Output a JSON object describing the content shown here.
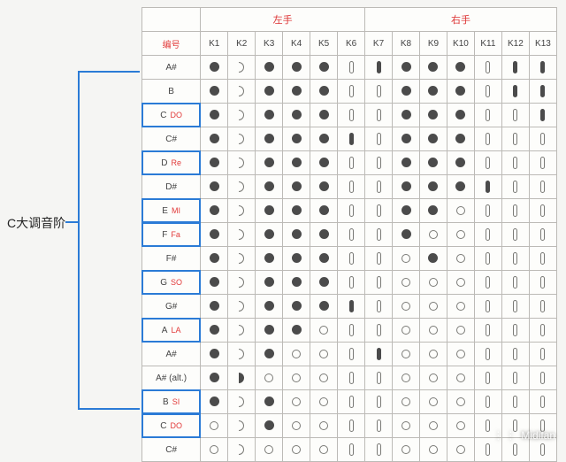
{
  "title_label": "C大调音阶",
  "header_note_label": "编号",
  "left_hand_label": "左手",
  "right_hand_label": "右手",
  "watermark": "Midifan",
  "columns": [
    "K1",
    "K2",
    "K3",
    "K4",
    "K5",
    "K6",
    "K7",
    "K8",
    "K9",
    "K10",
    "K11",
    "K12",
    "K13"
  ],
  "left_cols": 6,
  "right_cols": 7,
  "symbol_style_by_col": {
    "K1": "dot",
    "K2": "half",
    "K3": "dot",
    "K4": "dot",
    "K5": "dot",
    "K6": "oval",
    "K7": "oval",
    "K8": "dot",
    "K9": "dot",
    "K10": "dot",
    "K11": "oval",
    "K12": "oval",
    "K13": "oval"
  },
  "rows": [
    {
      "note": "A#",
      "solfege": "",
      "highlight": false,
      "cells": [
        1,
        0,
        1,
        1,
        1,
        0,
        1,
        1,
        1,
        1,
        0,
        1,
        1
      ]
    },
    {
      "note": "B",
      "solfege": "",
      "highlight": false,
      "cells": [
        1,
        0,
        1,
        1,
        1,
        0,
        0,
        1,
        1,
        1,
        0,
        1,
        1
      ]
    },
    {
      "note": "C",
      "solfege": "DO",
      "highlight": true,
      "cells": [
        1,
        0,
        1,
        1,
        1,
        0,
        0,
        1,
        1,
        1,
        0,
        0,
        1
      ]
    },
    {
      "note": "C#",
      "solfege": "",
      "highlight": false,
      "cells": [
        1,
        0,
        1,
        1,
        1,
        1,
        0,
        1,
        1,
        1,
        0,
        0,
        0
      ]
    },
    {
      "note": "D",
      "solfege": "Re",
      "highlight": true,
      "cells": [
        1,
        0,
        1,
        1,
        1,
        0,
        0,
        1,
        1,
        1,
        0,
        0,
        0
      ]
    },
    {
      "note": "D#",
      "solfege": "",
      "highlight": false,
      "cells": [
        1,
        0,
        1,
        1,
        1,
        0,
        0,
        1,
        1,
        1,
        1,
        0,
        0
      ]
    },
    {
      "note": "E",
      "solfege": "MI",
      "highlight": true,
      "cells": [
        1,
        0,
        1,
        1,
        1,
        0,
        0,
        1,
        1,
        0,
        0,
        0,
        0
      ]
    },
    {
      "note": "F",
      "solfege": "Fa",
      "highlight": true,
      "cells": [
        1,
        0,
        1,
        1,
        1,
        0,
        0,
        1,
        0,
        0,
        0,
        0,
        0
      ]
    },
    {
      "note": "F#",
      "solfege": "",
      "highlight": false,
      "cells": [
        1,
        0,
        1,
        1,
        1,
        0,
        0,
        0,
        1,
        0,
        0,
        0,
        0
      ]
    },
    {
      "note": "G",
      "solfege": "SO",
      "highlight": true,
      "cells": [
        1,
        0,
        1,
        1,
        1,
        0,
        0,
        0,
        0,
        0,
        0,
        0,
        0
      ]
    },
    {
      "note": "G#",
      "solfege": "",
      "highlight": false,
      "cells": [
        1,
        0,
        1,
        1,
        1,
        1,
        0,
        0,
        0,
        0,
        0,
        0,
        0
      ]
    },
    {
      "note": "A",
      "solfege": "LA",
      "highlight": true,
      "cells": [
        1,
        0,
        1,
        1,
        0,
        0,
        0,
        0,
        0,
        0,
        0,
        0,
        0
      ]
    },
    {
      "note": "A#",
      "solfege": "",
      "highlight": false,
      "cells": [
        1,
        0,
        1,
        0,
        0,
        0,
        1,
        0,
        0,
        0,
        0,
        0,
        0
      ]
    },
    {
      "note": "A# (alt.)",
      "solfege": "",
      "highlight": false,
      "cells": [
        1,
        1,
        0,
        0,
        0,
        0,
        0,
        0,
        0,
        0,
        0,
        0,
        0
      ]
    },
    {
      "note": "B",
      "solfege": "SI",
      "highlight": true,
      "cells": [
        1,
        0,
        1,
        0,
        0,
        0,
        0,
        0,
        0,
        0,
        0,
        0,
        0
      ]
    },
    {
      "note": "C",
      "solfege": "DO",
      "highlight": true,
      "cells": [
        0,
        0,
        1,
        0,
        0,
        0,
        0,
        0,
        0,
        0,
        0,
        0,
        0
      ]
    },
    {
      "note": "C#",
      "solfege": "",
      "highlight": false,
      "cells": [
        0,
        0,
        0,
        0,
        0,
        0,
        0,
        0,
        0,
        0,
        0,
        0,
        0
      ]
    }
  ],
  "colors": {
    "accent_blue": "#2b7bd6",
    "accent_red": "#e23a3a",
    "border": "#bcbab6",
    "fill": "#4b4b4b",
    "bg": "#f5f5f3"
  }
}
